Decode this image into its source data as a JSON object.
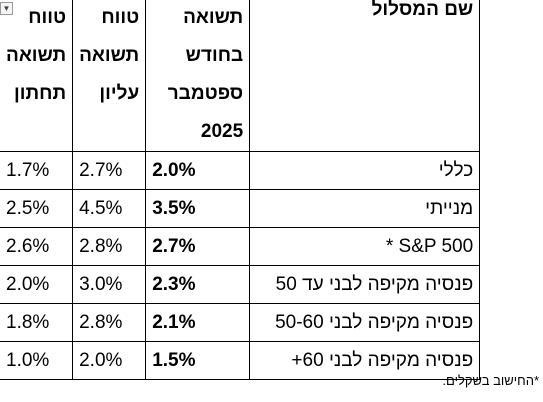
{
  "header": {
    "name": "שם המסלול",
    "return_lines": [
      "תשואה",
      "בחודש",
      "ספטמבר",
      "2025"
    ],
    "upper_lines": [
      "טווח",
      "תשואה",
      "עליון"
    ],
    "lower_lines": [
      "טווח",
      "תשואה",
      "תחתון"
    ]
  },
  "rows": [
    {
      "name": "כללי",
      "return": "2.0%",
      "upper": "2.7%",
      "lower": "1.7%"
    },
    {
      "name": "מנייתי",
      "return": "3.5%",
      "upper": "4.5%",
      "lower": "2.5%"
    },
    {
      "name": "S&P 500  *",
      "return": "2.7%",
      "upper": "2.8%",
      "lower": "2.6%"
    },
    {
      "name": "פנסיה מקיפה לבני עד 50",
      "return": "2.3%",
      "upper": "3.0%",
      "lower": "2.0%"
    },
    {
      "name": "פנסיה מקיפה לבני 50-60",
      "return": "2.1%",
      "upper": "2.8%",
      "lower": "1.8%"
    },
    {
      "name": "פנסיה מקיפה לבני 60+",
      "return": "1.5%",
      "upper": "2.0%",
      "lower": "1.0%"
    }
  ],
  "footnote": "*החישוב בשקלים.",
  "filter_icon": "dropdown-arrow-icon"
}
